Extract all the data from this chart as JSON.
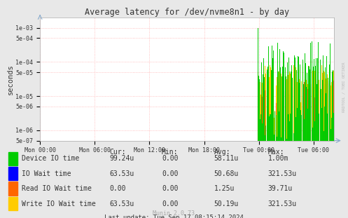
{
  "title": "Average latency for /dev/nvme8n1 - by day",
  "ylabel": "seconds",
  "bg_color": "#e8e8e8",
  "plot_bg_color": "#ffffff",
  "grid_color": "#ffb0b0",
  "title_color": "#333333",
  "watermark": "RRDTOOL / TOBI OETIKER",
  "munin_version": "Munin 2.0.73",
  "x_ticks_labels": [
    "Mon 00:00",
    "Mon 06:00",
    "Mon 12:00",
    "Mon 18:00",
    "Tue 00:00",
    "Tue 06:00"
  ],
  "ylim_min": 5e-07,
  "ylim_max": 0.002,
  "legend_colors": [
    "#00cc00",
    "#0000ff",
    "#ff6600",
    "#ffcc00"
  ],
  "legend_labels": [
    "Device IO time",
    "IO Wait time",
    "Read IO Wait time",
    "Write IO Wait time"
  ],
  "legend_stats": {
    "headers": [
      "Cur:",
      "Min:",
      "Avg:",
      "Max:"
    ],
    "rows": [
      [
        "99.24u",
        "0.00",
        "58.11u",
        "1.00m"
      ],
      [
        "63.53u",
        "0.00",
        "50.68u",
        "321.53u"
      ],
      [
        "0.00",
        "0.00",
        "1.25u",
        "39.71u"
      ],
      [
        "63.53u",
        "0.00",
        "50.19u",
        "321.53u"
      ]
    ]
  },
  "last_update": "Last update: Tue Sep 17 08:15:14 2024"
}
